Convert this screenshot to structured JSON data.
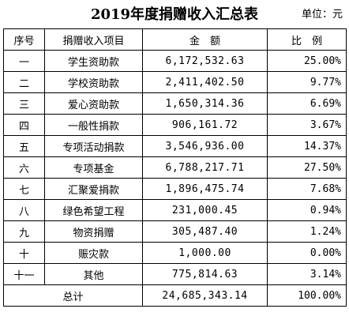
{
  "title": "2019年度捐赠收入汇总表",
  "unit": "单位：元",
  "headers": {
    "no": "序号",
    "item": "捐赠收入项目",
    "amount": "金　额",
    "ratio": "比　例"
  },
  "rows": [
    {
      "no": "一",
      "item": "学生资助款",
      "amount": "6,172,532.63",
      "ratio": "25.00%"
    },
    {
      "no": "二",
      "item": "学校资助款",
      "amount": "2,411,402.50",
      "ratio": "9.77%"
    },
    {
      "no": "三",
      "item": "爱心资助款",
      "amount": "1,650,314.36",
      "ratio": "6.69%"
    },
    {
      "no": "四",
      "item": "一般性捐款",
      "amount": "906,161.72",
      "ratio": "3.67%"
    },
    {
      "no": "五",
      "item": "专项活动捐款",
      "amount": "3,546,936.00",
      "ratio": "14.37%"
    },
    {
      "no": "六",
      "item": "专项基金",
      "amount": "6,788,217.71",
      "ratio": "27.50%"
    },
    {
      "no": "七",
      "item": "汇聚爱捐款",
      "amount": "1,896,475.74",
      "ratio": "7.68%"
    },
    {
      "no": "八",
      "item": "绿色希望工程",
      "amount": "231,000.45",
      "ratio": "0.94%"
    },
    {
      "no": "九",
      "item": "物资捐赠",
      "amount": "305,487.40",
      "ratio": "1.24%"
    },
    {
      "no": "十",
      "item": "赈灾款",
      "amount": "1,000.00",
      "ratio": "0.00%"
    },
    {
      "no": "十一",
      "item": "其他",
      "amount": "775,814.63",
      "ratio": "3.14%"
    }
  ],
  "total": {
    "label": "总计",
    "amount": "24,685,343.14",
    "ratio": "100.00%"
  }
}
